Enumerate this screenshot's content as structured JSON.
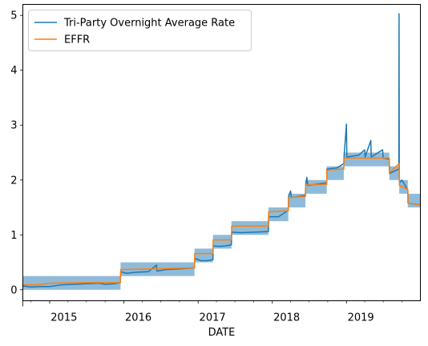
{
  "chart_data": {
    "type": "line",
    "title": "",
    "xlabel": "DATE",
    "ylabel": "",
    "xlim": [
      "2014-08-22",
      "2019-12-31"
    ],
    "ylim": [
      -0.2,
      5.2
    ],
    "x_tick_labels": [
      {
        "date": "2015-01-01",
        "label": "2015"
      },
      {
        "date": "2016-01-01",
        "label": "2016"
      },
      {
        "date": "2017-01-01",
        "label": "2017"
      },
      {
        "date": "2018-01-01",
        "label": "2018"
      },
      {
        "date": "2019-01-01",
        "label": "2019"
      }
    ],
    "y_ticks": [
      0,
      1,
      2,
      3,
      4,
      5
    ],
    "grid": false,
    "legend": {
      "position": "top-left",
      "entries": [
        {
          "name": "Tri-Party Overnight Average Rate",
          "color": "#1f77b4"
        },
        {
          "name": "EFFR",
          "color": "#ff7f0e"
        }
      ]
    },
    "target_range": {
      "color": "#1f77b4",
      "opacity": 0.5,
      "bands": [
        {
          "start": "2014-08-22",
          "end": "2015-12-16",
          "low": 0.0,
          "high": 0.25
        },
        {
          "start": "2015-12-16",
          "end": "2016-12-14",
          "low": 0.25,
          "high": 0.5
        },
        {
          "start": "2016-12-14",
          "end": "2017-03-15",
          "low": 0.5,
          "high": 0.75
        },
        {
          "start": "2017-03-15",
          "end": "2017-06-14",
          "low": 0.75,
          "high": 1.0
        },
        {
          "start": "2017-06-14",
          "end": "2017-12-13",
          "low": 1.0,
          "high": 1.25
        },
        {
          "start": "2017-12-13",
          "end": "2018-03-21",
          "low": 1.25,
          "high": 1.5
        },
        {
          "start": "2018-03-21",
          "end": "2018-06-13",
          "low": 1.5,
          "high": 1.75
        },
        {
          "start": "2018-06-13",
          "end": "2018-09-26",
          "low": 1.75,
          "high": 2.0
        },
        {
          "start": "2018-09-26",
          "end": "2018-12-19",
          "low": 2.0,
          "high": 2.25
        },
        {
          "start": "2018-12-19",
          "end": "2019-07-31",
          "low": 2.25,
          "high": 2.5
        },
        {
          "start": "2019-07-31",
          "end": "2019-09-18",
          "low": 2.0,
          "high": 2.25
        },
        {
          "start": "2019-09-18",
          "end": "2019-10-30",
          "low": 1.75,
          "high": 2.0
        },
        {
          "start": "2019-10-30",
          "end": "2019-12-31",
          "low": 1.5,
          "high": 1.75
        }
      ]
    },
    "series": [
      {
        "name": "Tri-Party Overnight Average Rate",
        "color": "#1f77b4",
        "points": [
          [
            "2014-08-22",
            0.07
          ],
          [
            "2014-10-01",
            0.05
          ],
          [
            "2014-11-15",
            0.06
          ],
          [
            "2015-01-01",
            0.06
          ],
          [
            "2015-03-01",
            0.09
          ],
          [
            "2015-05-01",
            0.1
          ],
          [
            "2015-07-01",
            0.11
          ],
          [
            "2015-09-01",
            0.12
          ],
          [
            "2015-10-01",
            0.1
          ],
          [
            "2015-11-15",
            0.11
          ],
          [
            "2015-12-15",
            0.13
          ],
          [
            "2015-12-17",
            0.33
          ],
          [
            "2016-01-15",
            0.3
          ],
          [
            "2016-03-01",
            0.32
          ],
          [
            "2016-05-01",
            0.33
          ],
          [
            "2016-06-10",
            0.45
          ],
          [
            "2016-06-12",
            0.34
          ],
          [
            "2016-08-01",
            0.37
          ],
          [
            "2016-10-01",
            0.38
          ],
          [
            "2016-12-14",
            0.4
          ],
          [
            "2016-12-15",
            0.57
          ],
          [
            "2017-01-15",
            0.53
          ],
          [
            "2017-02-15",
            0.53
          ],
          [
            "2017-03-15",
            0.55
          ],
          [
            "2017-03-16",
            0.8
          ],
          [
            "2017-04-15",
            0.79
          ],
          [
            "2017-05-15",
            0.8
          ],
          [
            "2017-06-14",
            0.82
          ],
          [
            "2017-06-15",
            1.05
          ],
          [
            "2017-08-01",
            1.04
          ],
          [
            "2017-10-01",
            1.05
          ],
          [
            "2017-12-13",
            1.06
          ],
          [
            "2017-12-14",
            1.33
          ],
          [
            "2018-02-01",
            1.33
          ],
          [
            "2018-03-21",
            1.45
          ],
          [
            "2018-03-22",
            1.7
          ],
          [
            "2018-04-01",
            1.8
          ],
          [
            "2018-04-05",
            1.68
          ],
          [
            "2018-06-13",
            1.72
          ],
          [
            "2018-06-14",
            1.9
          ],
          [
            "2018-06-20",
            2.05
          ],
          [
            "2018-06-25",
            1.9
          ],
          [
            "2018-09-26",
            1.95
          ],
          [
            "2018-09-27",
            2.2
          ],
          [
            "2018-11-15",
            2.22
          ],
          [
            "2018-12-19",
            2.3
          ],
          [
            "2018-12-20",
            2.42
          ],
          [
            "2019-01-01",
            3.02
          ],
          [
            "2019-01-03",
            2.42
          ],
          [
            "2019-03-01",
            2.45
          ],
          [
            "2019-04-01",
            2.55
          ],
          [
            "2019-04-03",
            2.42
          ],
          [
            "2019-05-01",
            2.72
          ],
          [
            "2019-05-03",
            2.42
          ],
          [
            "2019-06-28",
            2.55
          ],
          [
            "2019-07-01",
            2.4
          ],
          [
            "2019-07-31",
            2.38
          ],
          [
            "2019-08-01",
            2.12
          ],
          [
            "2019-09-16",
            2.2
          ],
          [
            "2019-09-17",
            5.03
          ],
          [
            "2019-09-18",
            2.3
          ],
          [
            "2019-09-19",
            1.95
          ],
          [
            "2019-10-01",
            2.0
          ],
          [
            "2019-10-30",
            1.82
          ],
          [
            "2019-10-31",
            1.58
          ],
          [
            "2019-12-01",
            1.56
          ],
          [
            "2019-12-31",
            1.55
          ]
        ]
      },
      {
        "name": "EFFR",
        "color": "#ff7f0e",
        "points": [
          [
            "2014-08-22",
            0.09
          ],
          [
            "2014-11-01",
            0.09
          ],
          [
            "2015-01-01",
            0.12
          ],
          [
            "2015-06-01",
            0.13
          ],
          [
            "2015-10-01",
            0.13
          ],
          [
            "2015-12-15",
            0.13
          ],
          [
            "2015-12-17",
            0.37
          ],
          [
            "2016-06-01",
            0.38
          ],
          [
            "2016-12-14",
            0.4
          ],
          [
            "2016-12-15",
            0.66
          ],
          [
            "2017-03-15",
            0.66
          ],
          [
            "2017-03-16",
            0.91
          ],
          [
            "2017-06-14",
            0.91
          ],
          [
            "2017-06-15",
            1.16
          ],
          [
            "2017-12-13",
            1.16
          ],
          [
            "2017-12-14",
            1.42
          ],
          [
            "2018-03-21",
            1.44
          ],
          [
            "2018-03-22",
            1.68
          ],
          [
            "2018-06-13",
            1.7
          ],
          [
            "2018-06-14",
            1.91
          ],
          [
            "2018-09-26",
            1.92
          ],
          [
            "2018-09-27",
            2.18
          ],
          [
            "2018-12-19",
            2.2
          ],
          [
            "2018-12-20",
            2.4
          ],
          [
            "2019-07-31",
            2.4
          ],
          [
            "2019-08-01",
            2.13
          ],
          [
            "2019-09-17",
            2.3
          ],
          [
            "2019-09-19",
            1.9
          ],
          [
            "2019-10-30",
            1.83
          ],
          [
            "2019-10-31",
            1.58
          ],
          [
            "2019-12-31",
            1.55
          ]
        ]
      }
    ]
  }
}
